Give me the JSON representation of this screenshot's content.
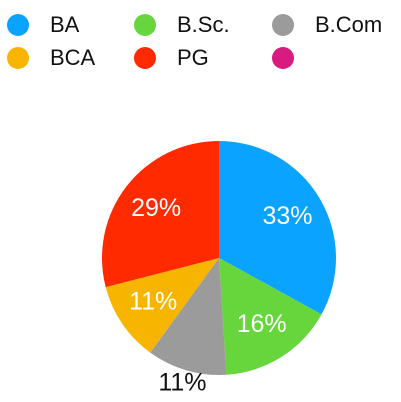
{
  "chart_data": {
    "type": "pie",
    "categories": [
      "BA",
      "B.Sc.",
      "B.Com",
      "BCA",
      "PG",
      null
    ],
    "values": [
      33,
      16,
      11,
      11,
      29,
      0
    ],
    "value_labels": [
      "33%",
      "16%",
      "11%",
      "11%",
      "29%",
      null
    ],
    "colors": [
      "#0aa3ff",
      "#66d63c",
      "#9b9b9b",
      "#f7b500",
      "#ff2a00",
      "#d81b7e"
    ],
    "legend": "top"
  }
}
